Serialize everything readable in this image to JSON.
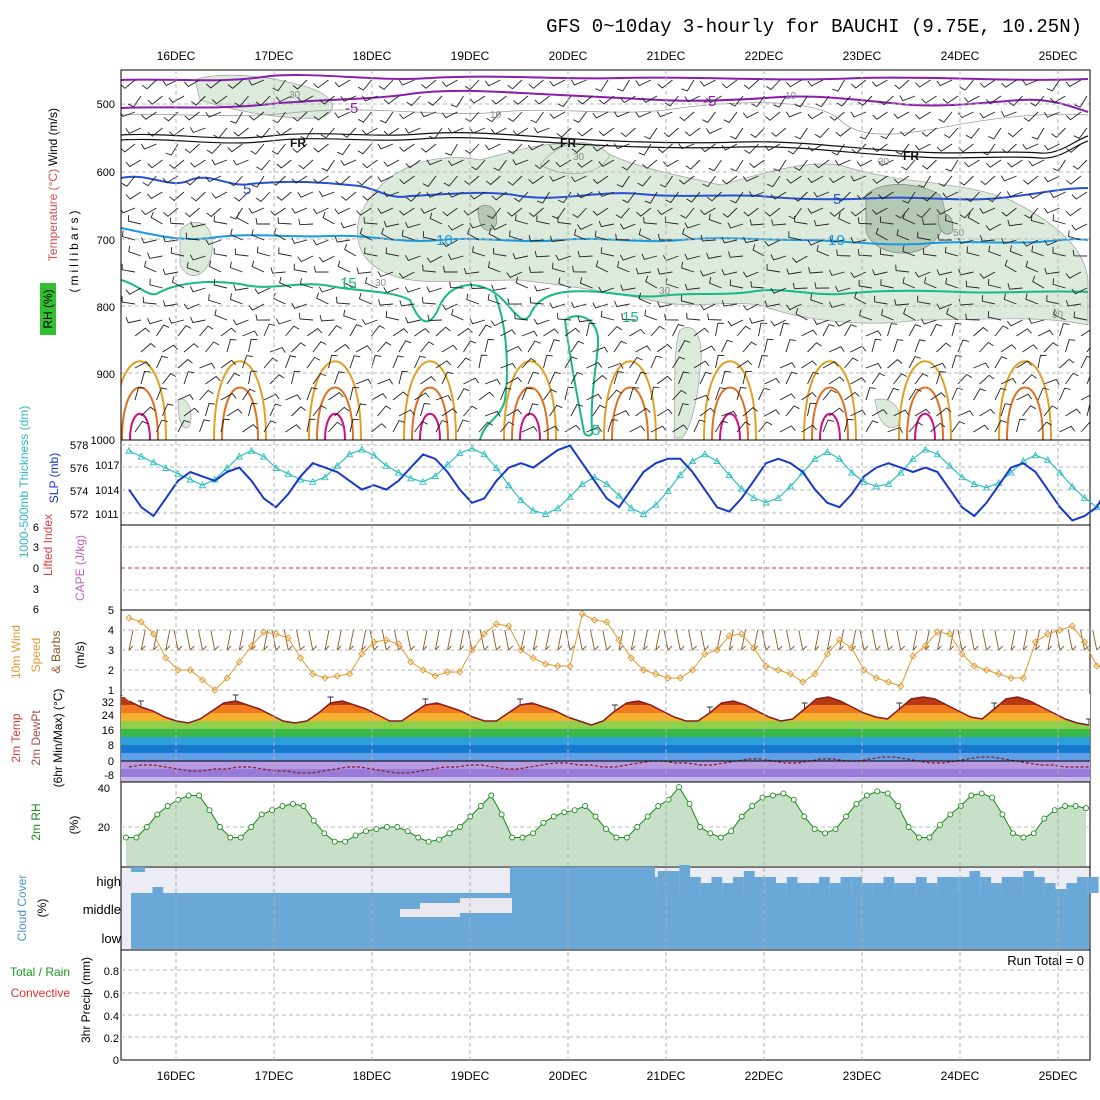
{
  "title": "GFS 0~10day 3-hourly for BAUCHI (9.75E, 10.25N)",
  "dates": [
    "16DEC",
    "17DEC",
    "18DEC",
    "19DEC",
    "20DEC",
    "21DEC",
    "22DEC",
    "23DEC",
    "24DEC",
    "25DEC"
  ],
  "colors": {
    "grid": "#b4b4b4",
    "rh_fill": "#d9ecd9",
    "rh_fill_dark": "#a9c4a9",
    "t_neg5": "#8a1db0",
    "t_fr": "#111111",
    "t_5": "#2850d0",
    "t_10": "#1a9ae0",
    "t_15": "#18b887",
    "t_20": "#e0a020",
    "t_25": "#e07020",
    "t_30": "#d01080",
    "slp": "#1838c8",
    "thick": "#30c0c0",
    "wind": "#e09a30",
    "barb_small": "#8a5a2a",
    "rh2m": "#1a8a1a",
    "rh2m_fill": "#c5dfc5",
    "cloud": "#6aa8d8",
    "cloud_light": "#ececf5"
  },
  "panels": {
    "upper": {
      "ylabel_wind": "Wind (m/s)",
      "ylabel_temp": "Temperature (°C)",
      "ylabel_mb": "(millibars)",
      "rh_badge": "RH (%)",
      "levels": [
        "500",
        "600",
        "700",
        "800",
        "900",
        "1000"
      ],
      "contour_labels": {
        "neg5": "-5",
        "neg5b": "-5",
        "fr1": "FR",
        "fr2": "FR",
        "fr3": "FR",
        "five1": "5",
        "five2": "5",
        "ten1": "10",
        "ten2": "10",
        "fifteen1": "15",
        "fifteen2": "15",
        "fifteen3": "5",
        "rh30a": "30",
        "rh10a": "10",
        "rh30b": "30",
        "rh10b": "10",
        "rh30c": "30",
        "rh30d": "30",
        "rh50": "50",
        "rh30e": "30",
        "rh30f": "30"
      }
    },
    "slp": {
      "ylabel_thick": "1000-500mb Thickness (dm)",
      "ylabel_slp": "SLP (mb)",
      "left_ticks": [
        "578",
        "576",
        "574",
        "572"
      ],
      "right_ticks": [
        "1017",
        "1014",
        "1011"
      ]
    },
    "cape": {
      "ylabel_li": "Lifted Index",
      "ylabel_cape": "CAPE (J/kg)",
      "ticks": [
        "6",
        "3",
        "0",
        "3",
        "6"
      ]
    },
    "wind10m": {
      "ylabel1": "10m Wind",
      "ylabel2": "Speed",
      "ylabel3": "& Barbs",
      "unit": "(m/s)",
      "ticks": [
        "5",
        "4",
        "3",
        "2",
        "1"
      ]
    },
    "temp2m": {
      "ylabel1": "2m Temp",
      "ylabel2": "2m DewPt",
      "ylabel3": "(6hr Min/Max) (°C)",
      "ticks": [
        "32",
        "24",
        "16",
        "8",
        "0",
        "-8"
      ]
    },
    "rh2m": {
      "ylabel": "2m RH",
      "unit": "(%)",
      "ticks": [
        "40",
        "20"
      ]
    },
    "cloud": {
      "ylabel": "Cloud Cover",
      "unit": "(%)",
      "levels": [
        "high",
        "middle",
        "low"
      ]
    },
    "precip": {
      "ylabel1": "Total / Rain",
      "ylabel2": "Convective",
      "ylabel3": "3hr Precip (mm)",
      "run_total": "Run Total = 0",
      "ticks": [
        "0.8",
        "0.6",
        "0.4",
        "0.2",
        "0"
      ]
    }
  },
  "chart_data": {
    "type": "line",
    "x_start": "15DEC 12Z",
    "step_hours": 3,
    "slp_mb": [
      1014,
      1012,
      1011,
      1013,
      1015,
      1016,
      1015.5,
      1015,
      1016,
      1016.5,
      1015,
      1013,
      1012,
      1013.5,
      1015.5,
      1017,
      1016.5,
      1016,
      1015,
      1014,
      1014.5,
      1014,
      1015,
      1016.5,
      1018,
      1017.5,
      1016,
      1014,
      1012.5,
      1013,
      1015,
      1016.5,
      1017,
      1016.5,
      1017.5,
      1018.5,
      1019,
      1017,
      1015,
      1013,
      1012,
      1014,
      1016,
      1017,
      1017.5,
      1017.5,
      1016,
      1014,
      1012,
      1011.5,
      1013,
      1015,
      1017,
      1017.5,
      1017,
      1016,
      1014,
      1012.5,
      1012,
      1013.5,
      1015.5,
      1016.5,
      1017,
      1016.5,
      1016,
      1016.5,
      1016,
      1014,
      1012,
      1011,
      1012.5,
      1014.5,
      1016.5,
      1017,
      1016,
      1014,
      1012,
      1010.5,
      1011,
      1012,
      1014.5,
      1016.5,
      1017,
      1016.5,
      1016,
      1015,
      1014.5,
      1014,
      1014,
      1014
    ],
    "thickness_dm": [
      577.5,
      577,
      576.5,
      576,
      575.5,
      575,
      574.5,
      575,
      576,
      577,
      577.5,
      577,
      576,
      575.5,
      575,
      574.8,
      575.2,
      576.2,
      577.2,
      577.6,
      577.1,
      576.2,
      575.6,
      575.1,
      574.8,
      575.3,
      576.3,
      577.3,
      577.7,
      577.2,
      576.0,
      574.5,
      573.2,
      572.3,
      572.0,
      572.5,
      573.5,
      574.6,
      575.2,
      574.6,
      573.6,
      572.5,
      572.0,
      572.8,
      574.0,
      575.4,
      576.6,
      577.2,
      576.6,
      575.4,
      574.2,
      573.4,
      573.0,
      573.4,
      574.4,
      575.6,
      576.8,
      577.4,
      576.8,
      575.6,
      574.8,
      574.4,
      574.6,
      575.6,
      576.8,
      577.6,
      577.2,
      576.2,
      575.2,
      574.6,
      574.3,
      574.7,
      575.6,
      576.6,
      577.1,
      576.7,
      575.6,
      574.4,
      573.4,
      572.6,
      572.3,
      572.8,
      574.0,
      575.3,
      576.3,
      576.8,
      576.2,
      575.0,
      573.6,
      572.9
    ],
    "wind10m_ms": [
      4.6,
      4.4,
      3.8,
      2.6,
      2.0,
      2.0,
      1.5,
      1.0,
      1.6,
      2.4,
      3.2,
      3.9,
      3.8,
      3.6,
      2.6,
      1.8,
      1.6,
      1.7,
      1.8,
      2.8,
      3.4,
      3.5,
      3.3,
      2.4,
      2.0,
      1.7,
      1.9,
      1.9,
      3.0,
      3.8,
      4.3,
      4.2,
      3.0,
      2.6,
      2.3,
      2.2,
      2.2,
      4.8,
      4.5,
      4.4,
      3.5,
      2.6,
      2.0,
      1.8,
      1.6,
      1.6,
      2.0,
      2.8,
      3.0,
      3.7,
      3.8,
      3.1,
      2.2,
      2.0,
      1.8,
      1.4,
      1.8,
      2.8,
      3.5,
      3.1,
      2.0,
      1.6,
      1.4,
      1.2,
      2.7,
      3.2,
      3.9,
      3.8,
      2.8,
      2.2,
      2.0,
      1.8,
      1.6,
      1.6,
      3.4,
      3.8,
      4.0,
      4.2,
      3.4,
      2.2,
      2.1,
      2.0,
      1.8,
      2.0,
      3.6,
      4.6,
      4.7,
      3.8,
      2.2,
      2.0,
      2.1,
      2.0
    ],
    "temp2m_max_c": [
      30,
      27,
      25,
      22,
      20,
      19,
      21,
      25,
      29,
      30,
      28,
      26,
      23,
      20,
      19,
      20,
      24,
      29,
      30,
      28,
      26,
      23,
      20,
      20,
      24,
      28,
      29,
      27,
      25,
      22,
      20,
      20,
      24,
      28,
      29,
      27,
      25,
      22,
      20,
      18,
      20,
      25,
      29,
      30,
      28,
      25,
      22,
      20,
      20,
      24,
      29,
      30,
      28,
      25,
      22,
      20,
      21,
      26,
      31,
      32,
      30,
      27,
      24,
      22,
      21,
      26,
      31,
      32,
      31,
      28,
      25,
      22,
      21,
      26,
      31,
      32,
      30,
      27,
      24,
      21,
      19,
      18
    ],
    "dewpt2m_c": [
      -3,
      -2,
      -2,
      -3,
      -4,
      -5,
      -5,
      -4,
      -4,
      -3,
      -3,
      -4,
      -5,
      -5,
      -6,
      -6,
      -5,
      -4,
      -3,
      -3,
      -4,
      -5,
      -6,
      -6,
      -5,
      -4,
      -3,
      -3,
      -2,
      -2,
      -3,
      -4,
      -4,
      -3,
      -2,
      -1,
      -1,
      -2,
      -2,
      -3,
      -3,
      -2,
      -1,
      0,
      0,
      -1,
      -1,
      -2,
      -2,
      -1,
      0,
      1,
      1,
      0,
      -1,
      -1,
      0,
      1,
      1,
      0,
      0,
      1,
      2,
      2,
      1,
      0,
      -1,
      -1,
      0,
      1,
      2,
      2,
      1,
      0,
      -1,
      -2,
      -2,
      -3,
      -3,
      -3
    ],
    "rh2m_pct": [
      15,
      15,
      20,
      26,
      30,
      33,
      35,
      35,
      28,
      20,
      15,
      15,
      20,
      26,
      28,
      30,
      31,
      30,
      23,
      17,
      13,
      13,
      16,
      18,
      19,
      20,
      20,
      18,
      15,
      13,
      14,
      17,
      20,
      25,
      30,
      35,
      26,
      15,
      15,
      17,
      22,
      25,
      27,
      28,
      30,
      25,
      19,
      15,
      15,
      20,
      25,
      30,
      33,
      39,
      31,
      20,
      17,
      15,
      18,
      25,
      30,
      34,
      35,
      36,
      33,
      25,
      19,
      17,
      19,
      25,
      31,
      35,
      37,
      36,
      30,
      20,
      15,
      15,
      21,
      26,
      30,
      35,
      36,
      34,
      26,
      17,
      15,
      17,
      24,
      28,
      30,
      30,
      29
    ]
  }
}
